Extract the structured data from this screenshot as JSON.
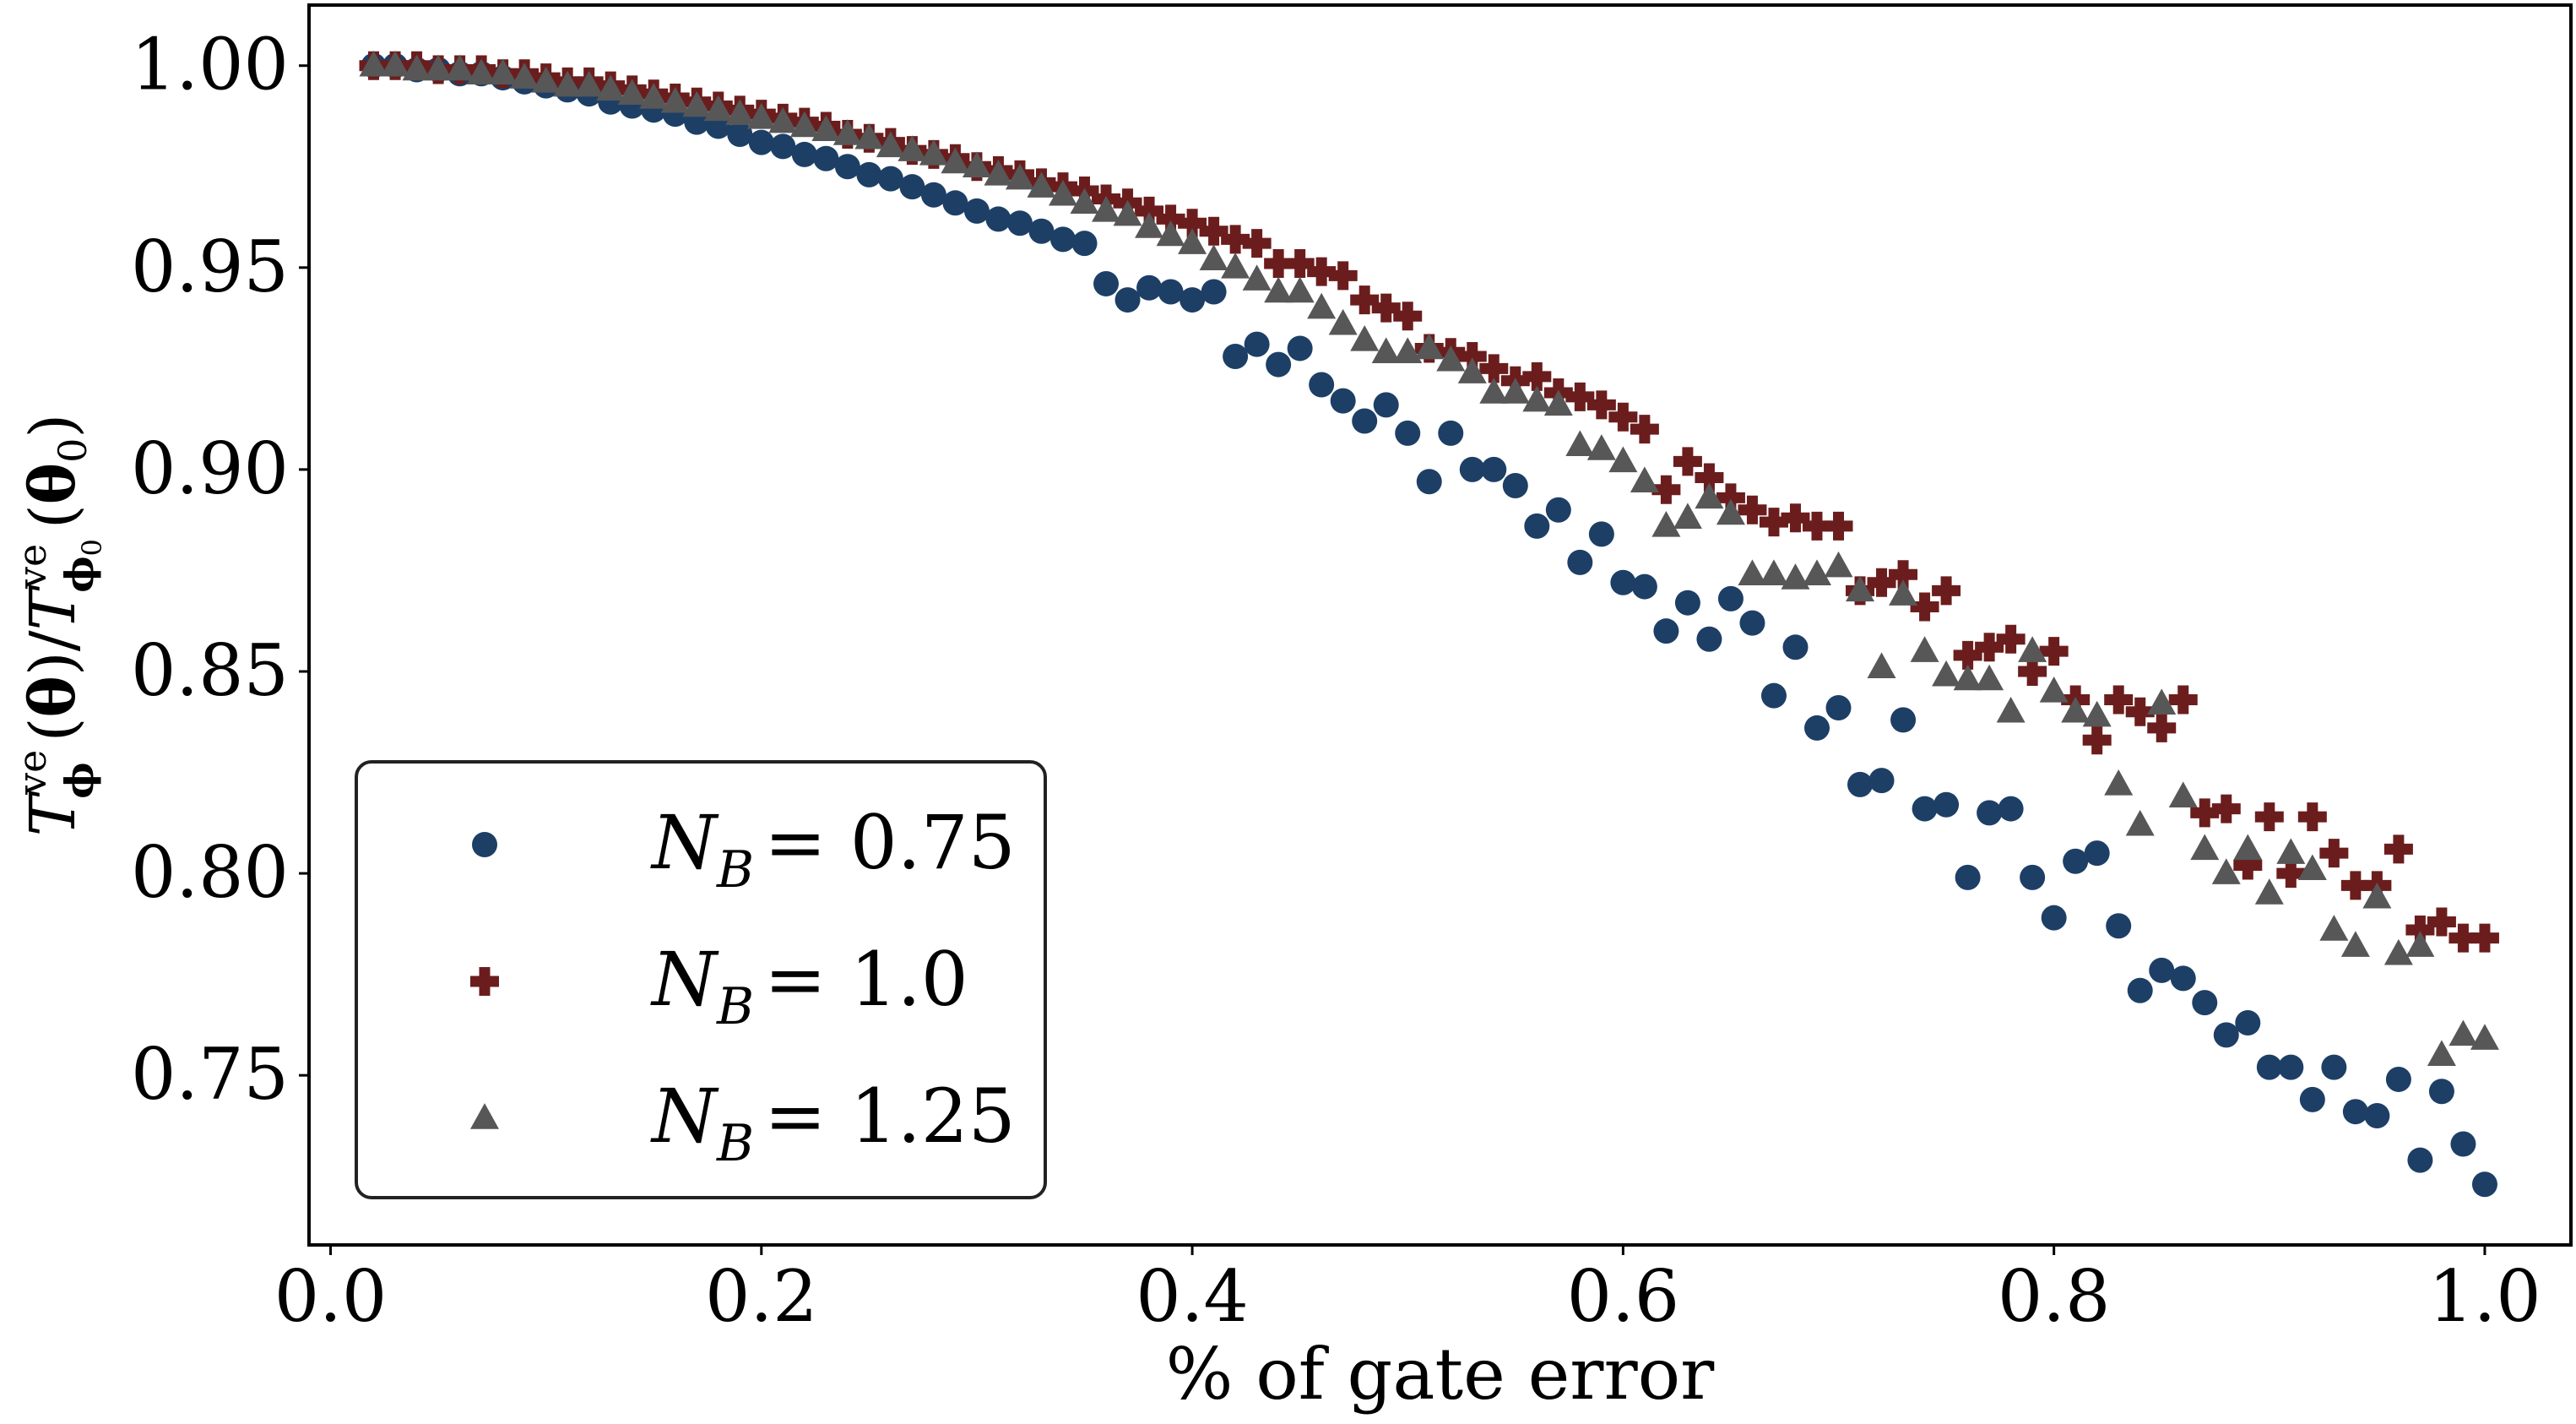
{
  "chart_data": {
    "type": "scatter",
    "title": "",
    "xlabel": "% of gate error",
    "ylabel": "T_Φ^ve(θ)/T_Φ0^ve(θ0)",
    "xlim": [
      -0.01,
      1.04
    ],
    "ylim": [
      0.708,
      1.015
    ],
    "xticks": [
      0.0,
      0.2,
      0.4,
      0.6,
      0.8,
      1.0
    ],
    "xtick_labels": [
      "0.0",
      "0.2",
      "0.4",
      "0.6",
      "0.8",
      "1.0"
    ],
    "yticks": [
      0.75,
      0.8,
      0.85,
      0.9,
      0.95,
      1.0
    ],
    "ytick_labels": [
      "0.75",
      "0.80",
      "0.85",
      "0.90",
      "0.95",
      "1.00"
    ],
    "grid": false,
    "legend": {
      "placement": "lower-left"
    },
    "x": [
      0.02,
      0.03,
      0.04,
      0.05,
      0.06,
      0.07,
      0.08,
      0.09,
      0.1,
      0.11,
      0.12,
      0.13,
      0.14,
      0.15,
      0.16,
      0.17,
      0.18,
      0.19,
      0.2,
      0.21,
      0.22,
      0.23,
      0.24,
      0.25,
      0.26,
      0.27,
      0.28,
      0.29,
      0.3,
      0.31,
      0.32,
      0.33,
      0.34,
      0.35,
      0.36,
      0.37,
      0.38,
      0.39,
      0.4,
      0.41,
      0.42,
      0.43,
      0.44,
      0.45,
      0.46,
      0.47,
      0.48,
      0.49,
      0.5,
      0.51,
      0.52,
      0.53,
      0.54,
      0.55,
      0.56,
      0.57,
      0.58,
      0.59,
      0.6,
      0.61,
      0.62,
      0.63,
      0.64,
      0.65,
      0.66,
      0.67,
      0.68,
      0.69,
      0.7,
      0.71,
      0.72,
      0.73,
      0.74,
      0.75,
      0.76,
      0.77,
      0.78,
      0.79,
      0.8,
      0.81,
      0.82,
      0.83,
      0.84,
      0.85,
      0.86,
      0.87,
      0.88,
      0.89,
      0.9,
      0.91,
      0.92,
      0.93,
      0.94,
      0.95,
      0.96,
      0.97,
      0.98,
      0.99,
      1.0
    ],
    "series": [
      {
        "name": "N_B = 0.75",
        "color": "#1d3f66",
        "marker": "circle",
        "values": [
          1.0,
          1.0,
          0.999,
          0.999,
          0.998,
          0.998,
          0.997,
          0.996,
          0.995,
          0.994,
          0.993,
          0.991,
          0.99,
          0.989,
          0.988,
          0.986,
          0.985,
          0.983,
          0.981,
          0.98,
          0.978,
          0.977,
          0.975,
          0.973,
          0.972,
          0.97,
          0.968,
          0.966,
          0.964,
          0.962,
          0.961,
          0.959,
          0.957,
          0.956,
          0.946,
          0.942,
          0.945,
          0.944,
          0.942,
          0.944,
          0.928,
          0.931,
          0.926,
          0.93,
          0.921,
          0.917,
          0.912,
          0.916,
          0.909,
          0.897,
          0.909,
          0.9,
          0.9,
          0.896,
          0.886,
          0.89,
          0.877,
          0.884,
          0.872,
          0.871,
          0.86,
          0.867,
          0.858,
          0.868,
          0.862,
          0.844,
          0.856,
          0.836,
          0.841,
          0.822,
          0.823,
          0.838,
          0.816,
          0.817,
          0.799,
          0.815,
          0.816,
          0.799,
          0.789,
          0.803,
          0.805,
          0.787,
          0.771,
          0.776,
          0.774,
          0.768,
          0.76,
          0.763,
          0.752,
          0.752,
          0.744,
          0.752,
          0.741,
          0.74,
          0.749,
          0.729,
          0.746,
          0.733,
          0.723
        ]
      },
      {
        "name": "N_B = 1.0",
        "color": "#6b1d1d",
        "marker": "plus",
        "values": [
          1.0,
          1.0,
          1.0,
          0.999,
          0.999,
          0.999,
          0.998,
          0.998,
          0.997,
          0.996,
          0.996,
          0.995,
          0.994,
          0.993,
          0.992,
          0.991,
          0.99,
          0.989,
          0.988,
          0.987,
          0.986,
          0.985,
          0.983,
          0.982,
          0.981,
          0.979,
          0.978,
          0.977,
          0.975,
          0.974,
          0.973,
          0.971,
          0.97,
          0.969,
          0.967,
          0.966,
          0.964,
          0.962,
          0.961,
          0.959,
          0.957,
          0.956,
          0.951,
          0.951,
          0.949,
          0.948,
          0.942,
          0.94,
          0.938,
          0.93,
          0.929,
          0.928,
          0.925,
          0.922,
          0.923,
          0.919,
          0.918,
          0.916,
          0.913,
          0.91,
          0.895,
          0.902,
          0.898,
          0.893,
          0.89,
          0.887,
          0.888,
          0.886,
          0.886,
          0.87,
          0.872,
          0.874,
          0.866,
          0.87,
          0.854,
          0.856,
          0.858,
          0.85,
          0.855,
          0.843,
          0.833,
          0.843,
          0.84,
          0.836,
          0.843,
          0.815,
          0.816,
          0.802,
          0.814,
          0.8,
          0.814,
          0.805,
          0.797,
          0.797,
          0.806,
          0.786,
          0.788,
          0.784,
          0.784
        ]
      },
      {
        "name": "N_B = 1.25",
        "color": "#575757",
        "marker": "triangle",
        "values": [
          1.0,
          1.0,
          0.999,
          0.999,
          0.999,
          0.998,
          0.998,
          0.997,
          0.996,
          0.995,
          0.995,
          0.994,
          0.993,
          0.992,
          0.991,
          0.99,
          0.989,
          0.988,
          0.987,
          0.986,
          0.985,
          0.984,
          0.983,
          0.982,
          0.98,
          0.979,
          0.978,
          0.976,
          0.975,
          0.973,
          0.972,
          0.97,
          0.968,
          0.966,
          0.964,
          0.963,
          0.96,
          0.958,
          0.956,
          0.952,
          0.95,
          0.947,
          0.944,
          0.944,
          0.94,
          0.936,
          0.932,
          0.929,
          0.929,
          0.93,
          0.927,
          0.924,
          0.919,
          0.919,
          0.917,
          0.916,
          0.906,
          0.905,
          0.902,
          0.897,
          0.886,
          0.888,
          0.893,
          0.889,
          0.874,
          0.874,
          0.873,
          0.874,
          0.876,
          0.87,
          0.851,
          0.869,
          0.855,
          0.849,
          0.848,
          0.848,
          0.84,
          0.855,
          0.845,
          0.84,
          0.839,
          0.822,
          0.812,
          0.842,
          0.819,
          0.806,
          0.8,
          0.806,
          0.795,
          0.805,
          0.801,
          0.786,
          0.782,
          0.794,
          0.78,
          0.782,
          0.755,
          0.76,
          0.759
        ]
      }
    ]
  }
}
